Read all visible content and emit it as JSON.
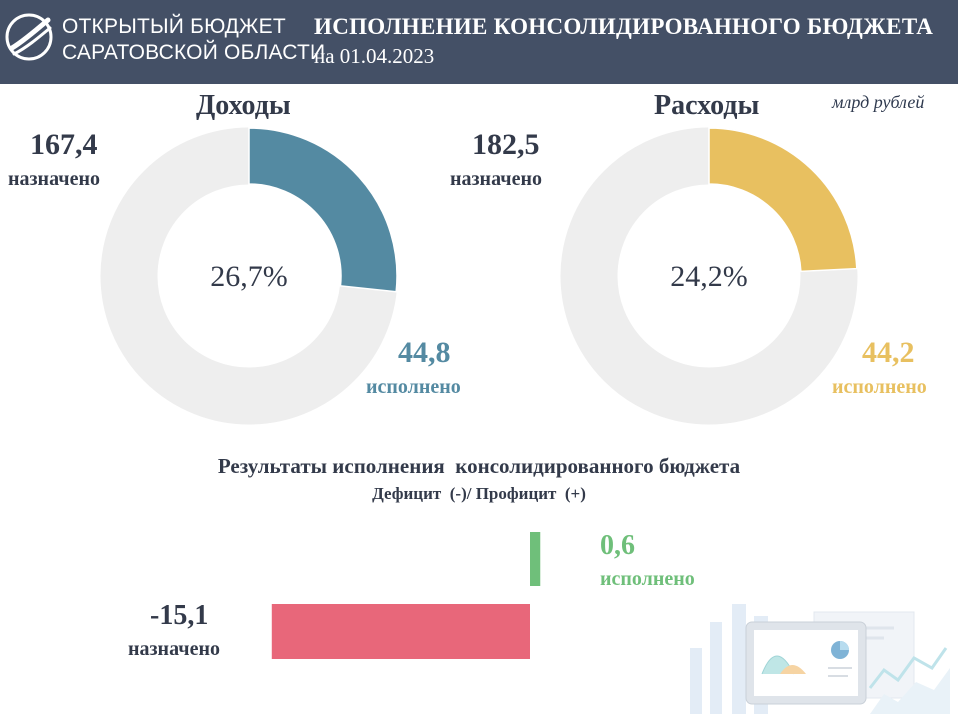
{
  "header": {
    "logo_line1": "ОТКРЫТЫЙ БЮДЖЕТ",
    "logo_line2": "САРАТОВСКОЙ ОБЛАСТИ",
    "title": "ИСПОЛНЕНИЕ КОНСОЛИДИРОВАННОГО БЮДЖЕТА",
    "date": "на 01.04.2023"
  },
  "unit_label": "млрд рублей",
  "colors": {
    "header_bg": "#445066",
    "income": "#548aa2",
    "expense": "#e8c060",
    "surplus": "#6fbf7a",
    "deficit": "#e8677a",
    "donut_bg": "#eeeeee"
  },
  "chart_data": [
    {
      "type": "pie",
      "title": "Доходы",
      "center_label": "26,7%",
      "planned_value": "167,4",
      "planned_label": "назначено",
      "executed_value": "44,8",
      "executed_label": "исполнено",
      "planned": 167.4,
      "executed": 44.8,
      "percent": 26.7
    },
    {
      "type": "pie",
      "title": "Расходы",
      "center_label": "24,2%",
      "planned_value": "182,5",
      "planned_label": "назначено",
      "executed_value": "44,2",
      "executed_label": "исполнено",
      "planned": 182.5,
      "executed": 44.2,
      "percent": 24.2
    },
    {
      "type": "bar",
      "title": "Результаты исполнения  консолидированного бюджета",
      "subtitle": "Дефицит  (-)/ Профицит  (+)",
      "series": [
        {
          "name": "исполнено",
          "value": 0.6,
          "label": "0,6"
        },
        {
          "name": "назначено",
          "value": -15.1,
          "label": "-15,1"
        }
      ]
    }
  ]
}
